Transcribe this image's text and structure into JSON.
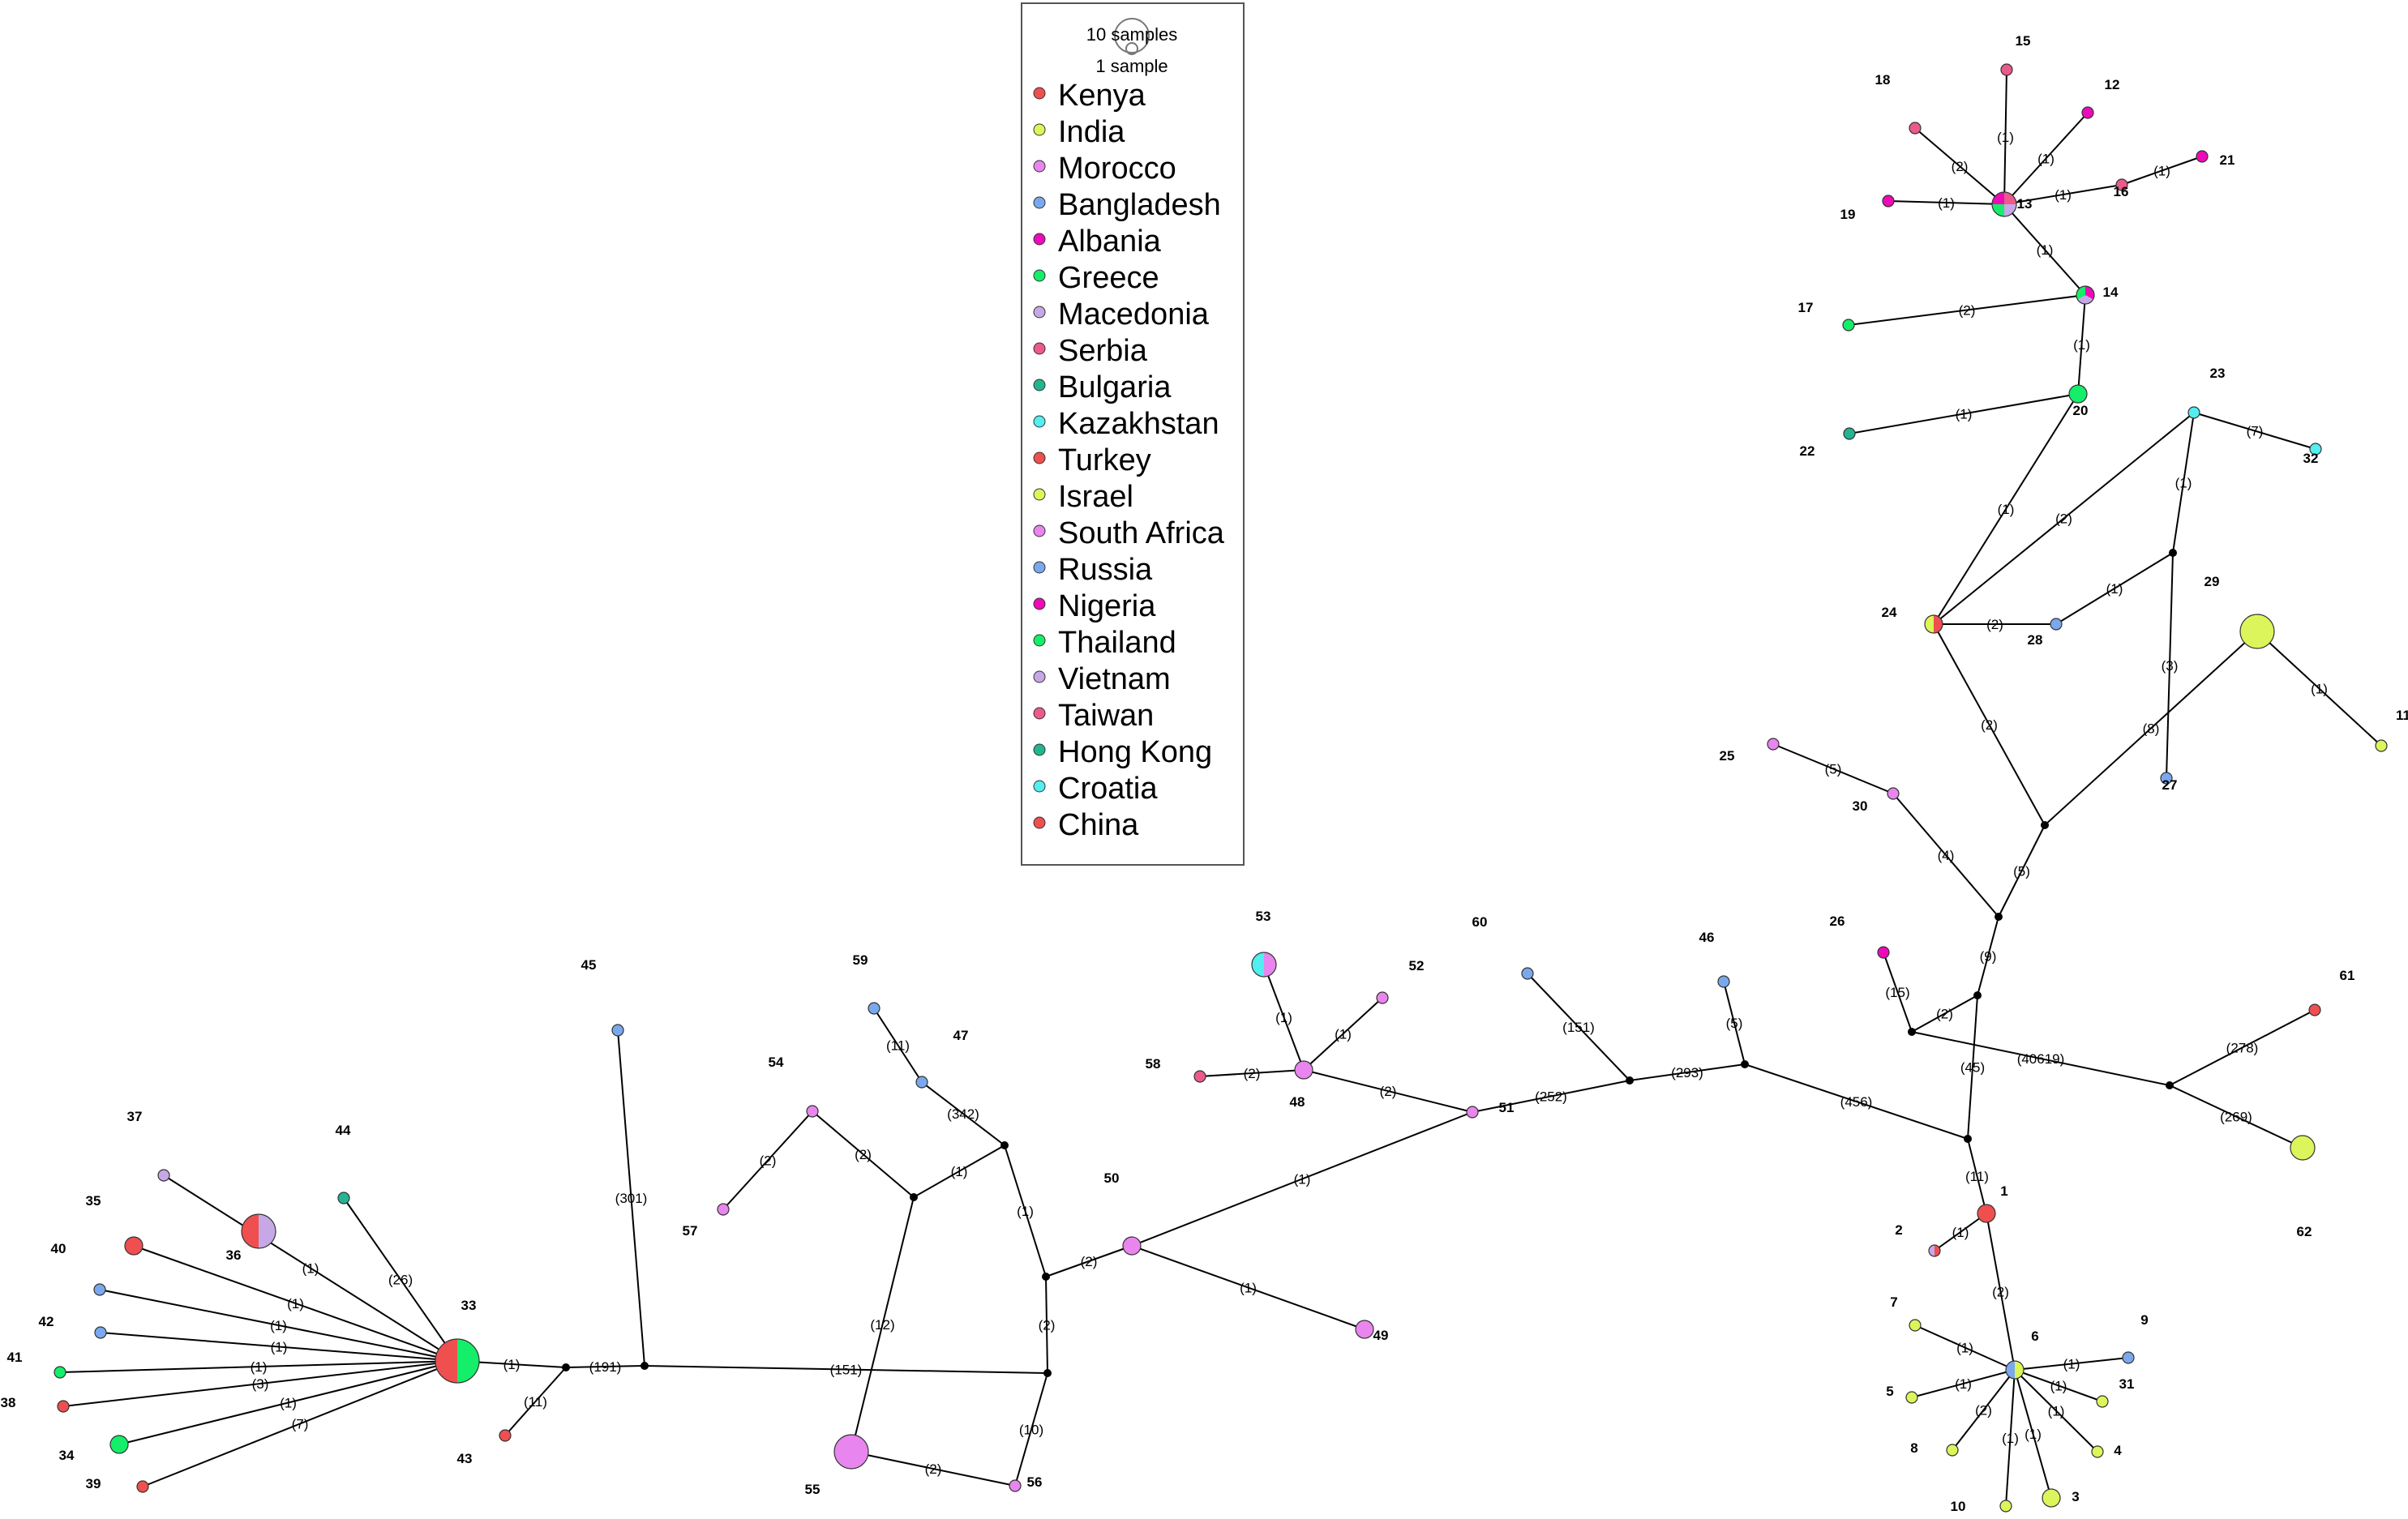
{
  "legend": {
    "size_labels": [
      "10 samples",
      "1 sample"
    ],
    "entries": [
      {
        "label": "Kenya",
        "color": "#ef4f4f"
      },
      {
        "label": "India",
        "color": "#dcf55a"
      },
      {
        "label": "Morocco",
        "color": "#e985ee"
      },
      {
        "label": "Bangladesh",
        "color": "#7aa8ec"
      },
      {
        "label": "Albania",
        "color": "#ee0ab9"
      },
      {
        "label": "Greece",
        "color": "#14ee69"
      },
      {
        "label": "Macedonia",
        "color": "#c6a8e6"
      },
      {
        "label": "Serbia",
        "color": "#ec5a8c"
      },
      {
        "label": "Bulgaria",
        "color": "#23b590"
      },
      {
        "label": "Kazakhstan",
        "color": "#52eef0"
      },
      {
        "label": "Turkey",
        "color": "#ef4f4f"
      },
      {
        "label": "Israel",
        "color": "#dcf55a"
      },
      {
        "label": "South Africa",
        "color": "#e985ee"
      },
      {
        "label": "Russia",
        "color": "#7aa8ec"
      },
      {
        "label": "Nigeria",
        "color": "#ee0ab9"
      },
      {
        "label": "Thailand",
        "color": "#14ee69"
      },
      {
        "label": "Vietnam",
        "color": "#c6a8e6"
      },
      {
        "label": "Taiwan",
        "color": "#ec5a8c"
      },
      {
        "label": "Hong Kong",
        "color": "#23b590"
      },
      {
        "label": "Croatia",
        "color": "#52eef0"
      },
      {
        "label": "China",
        "color": "#ef4f4f"
      }
    ]
  },
  "nodes": [
    {
      "id": "1",
      "label": "1",
      "colors": [
        "#ef4f4f"
      ],
      "size": 2
    },
    {
      "id": "2",
      "label": "2",
      "colors": [
        "#ef4f4f",
        "#c6a8e6"
      ],
      "size": 1
    },
    {
      "id": "3",
      "label": "3",
      "colors": [
        "#dcf55a"
      ],
      "size": 2
    },
    {
      "id": "4",
      "label": "4",
      "colors": [
        "#dcf55a"
      ],
      "size": 1
    },
    {
      "id": "5",
      "label": "5",
      "colors": [
        "#dcf55a"
      ],
      "size": 1
    },
    {
      "id": "6",
      "label": "6",
      "colors": [
        "#dcf55a",
        "#7aa8ec"
      ],
      "size": 2
    },
    {
      "id": "7",
      "label": "7",
      "colors": [
        "#dcf55a"
      ],
      "size": 1
    },
    {
      "id": "8",
      "label": "8",
      "colors": [
        "#dcf55a"
      ],
      "size": 1
    },
    {
      "id": "9",
      "label": "9",
      "colors": [
        "#7aa8ec"
      ],
      "size": 1
    },
    {
      "id": "10",
      "label": "10",
      "colors": [
        "#dcf55a"
      ],
      "size": 1
    },
    {
      "id": "11",
      "label": "11",
      "colors": [
        "#dcf55a"
      ],
      "size": 1
    },
    {
      "id": "12",
      "label": "12",
      "colors": [
        "#ee0ab9"
      ],
      "size": 1
    },
    {
      "id": "13",
      "label": "13",
      "colors": [
        "#ec5a8c",
        "#c6a8e6",
        "#14ee69",
        "#ee0ab9"
      ],
      "size": 3
    },
    {
      "id": "14",
      "label": "14",
      "colors": [
        "#ee0ab9",
        "#c6a8e6",
        "#14ee69"
      ],
      "size": 2
    },
    {
      "id": "15",
      "label": "15",
      "colors": [
        "#ec5a8c"
      ],
      "size": 1
    },
    {
      "id": "16",
      "label": "16",
      "colors": [
        "#ec5a8c"
      ],
      "size": 1
    },
    {
      "id": "17",
      "label": "17",
      "colors": [
        "#14ee69"
      ],
      "size": 1
    },
    {
      "id": "18",
      "label": "18",
      "colors": [
        "#ec5a8c"
      ],
      "size": 1
    },
    {
      "id": "19",
      "label": "19",
      "colors": [
        "#ee0ab9"
      ],
      "size": 1
    },
    {
      "id": "20",
      "label": "20",
      "colors": [
        "#14ee69"
      ],
      "size": 2
    },
    {
      "id": "21",
      "label": "21",
      "colors": [
        "#ee0ab9"
      ],
      "size": 1
    },
    {
      "id": "22",
      "label": "22",
      "colors": [
        "#23b590"
      ],
      "size": 1
    },
    {
      "id": "23",
      "label": "23",
      "colors": [
        "#52eef0"
      ],
      "size": 1
    },
    {
      "id": "24",
      "label": "24",
      "colors": [
        "#ef4f4f",
        "#dcf55a"
      ],
      "size": 2
    },
    {
      "id": "25",
      "label": "25",
      "colors": [
        "#e985ee"
      ],
      "size": 1
    },
    {
      "id": "26",
      "label": "26",
      "colors": [
        "#ee0ab9"
      ],
      "size": 1
    },
    {
      "id": "27",
      "label": "27",
      "colors": [
        "#7aa8ec"
      ],
      "size": 1
    },
    {
      "id": "28",
      "label": "28",
      "colors": [
        "#7aa8ec"
      ],
      "size": 1
    },
    {
      "id": "29",
      "label": "29",
      "colors": [
        "#dcf55a"
      ],
      "size": 4
    },
    {
      "id": "30",
      "label": "30",
      "colors": [
        "#e985ee"
      ],
      "size": 1
    },
    {
      "id": "31",
      "label": "31",
      "colors": [
        "#dcf55a"
      ],
      "size": 1
    },
    {
      "id": "32",
      "label": "32",
      "colors": [
        "#52eef0"
      ],
      "size": 1
    },
    {
      "id": "33",
      "label": "33",
      "colors": [
        "#14ee69",
        "#ef4f4f"
      ],
      "size": 5
    },
    {
      "id": "34",
      "label": "34",
      "colors": [
        "#14ee69"
      ],
      "size": 2
    },
    {
      "id": "35",
      "label": "35",
      "colors": [
        "#ef4f4f"
      ],
      "size": 2
    },
    {
      "id": "36",
      "label": "36",
      "colors": [
        "#c6a8e6",
        "#ef4f4f"
      ],
      "size": 4
    },
    {
      "id": "37",
      "label": "37",
      "colors": [
        "#c6a8e6"
      ],
      "size": 1
    },
    {
      "id": "38",
      "label": "38",
      "colors": [
        "#ef4f4f"
      ],
      "size": 1
    },
    {
      "id": "39",
      "label": "39",
      "colors": [
        "#ef4f4f"
      ],
      "size": 1
    },
    {
      "id": "40",
      "label": "40",
      "colors": [
        "#7aa8ec"
      ],
      "size": 1
    },
    {
      "id": "41",
      "label": "41",
      "colors": [
        "#14ee69"
      ],
      "size": 1
    },
    {
      "id": "42",
      "label": "42",
      "colors": [
        "#7aa8ec"
      ],
      "size": 1
    },
    {
      "id": "43",
      "label": "43",
      "colors": [
        "#ef4f4f"
      ],
      "size": 1
    },
    {
      "id": "44",
      "label": "44",
      "colors": [
        "#23b590"
      ],
      "size": 1
    },
    {
      "id": "45",
      "label": "45",
      "colors": [
        "#7aa8ec"
      ],
      "size": 1
    },
    {
      "id": "46",
      "label": "46",
      "colors": [
        "#7aa8ec"
      ],
      "size": 1
    },
    {
      "id": "47",
      "label": "47",
      "colors": [
        "#7aa8ec"
      ],
      "size": 1
    },
    {
      "id": "48",
      "label": "48",
      "colors": [
        "#e985ee"
      ],
      "size": 2
    },
    {
      "id": "49",
      "label": "49",
      "colors": [
        "#e985ee"
      ],
      "size": 2
    },
    {
      "id": "50",
      "label": "50",
      "colors": [
        "#e985ee"
      ],
      "size": 2
    },
    {
      "id": "51",
      "label": "51",
      "colors": [
        "#e985ee"
      ],
      "size": 1
    },
    {
      "id": "52",
      "label": "52",
      "colors": [
        "#e985ee"
      ],
      "size": 1
    },
    {
      "id": "53",
      "label": "53",
      "colors": [
        "#e985ee",
        "#52eef0"
      ],
      "size": 3
    },
    {
      "id": "54",
      "label": "54",
      "colors": [
        "#e985ee"
      ],
      "size": 1
    },
    {
      "id": "55",
      "label": "55",
      "colors": [
        "#e985ee"
      ],
      "size": 4
    },
    {
      "id": "56",
      "label": "56",
      "colors": [
        "#e985ee"
      ],
      "size": 1
    },
    {
      "id": "57",
      "label": "57",
      "colors": [
        "#e985ee"
      ],
      "size": 1
    },
    {
      "id": "58",
      "label": "58",
      "colors": [
        "#ec5a8c"
      ],
      "size": 1
    },
    {
      "id": "59",
      "label": "59",
      "colors": [
        "#7aa8ec"
      ],
      "size": 1
    },
    {
      "id": "60",
      "label": "60",
      "colors": [
        "#7aa8ec"
      ],
      "size": 1
    },
    {
      "id": "61",
      "label": "61",
      "colors": [
        "#ef4f4f"
      ],
      "size": 1
    },
    {
      "id": "62",
      "label": "62",
      "colors": [
        "#dcf55a"
      ],
      "size": 3
    }
  ],
  "edges": [
    {
      "from": "33",
      "to": "37",
      "label": "(1)"
    },
    {
      "from": "33",
      "to": "44",
      "label": "(26)"
    },
    {
      "from": "33",
      "to": "35",
      "label": "(1)"
    },
    {
      "from": "33",
      "to": "40",
      "label": "(1)"
    },
    {
      "from": "33",
      "to": "42",
      "label": "(1)"
    },
    {
      "from": "33",
      "to": "41",
      "label": "(1)"
    },
    {
      "from": "33",
      "to": "38",
      "label": "(3)"
    },
    {
      "from": "33",
      "to": "34",
      "label": "(1)"
    },
    {
      "from": "33",
      "to": "39",
      "label": "(7)"
    },
    {
      "from": "33",
      "to": "m1",
      "label": "(1)"
    },
    {
      "from": "m1",
      "to": "43",
      "label": "(11)"
    },
    {
      "from": "m1",
      "to": "m2",
      "label": "(191)"
    },
    {
      "from": "m2",
      "to": "45",
      "label": "(301)"
    },
    {
      "from": "m2",
      "to": "m3",
      "label": "(151)"
    },
    {
      "from": "m3",
      "to": "56",
      "label": "(10)"
    },
    {
      "from": "m3",
      "to": "m4",
      "label": "(2)"
    },
    {
      "from": "55",
      "to": "56",
      "label": "(2)"
    },
    {
      "from": "55",
      "to": "m5",
      "label": "(12)"
    },
    {
      "from": "m5",
      "to": "54",
      "label": "(2)"
    },
    {
      "from": "m5",
      "to": "m6",
      "label": "(1)"
    },
    {
      "from": "54",
      "to": "57",
      "label": "(2)"
    },
    {
      "from": "m6",
      "to": "47",
      "label": "(342)"
    },
    {
      "from": "m6",
      "to": "m4",
      "label": "(1)"
    },
    {
      "from": "47",
      "to": "59",
      "label": "(11)"
    },
    {
      "from": "m4",
      "to": "50",
      "label": "(2)"
    },
    {
      "from": "50",
      "to": "49",
      "label": "(1)"
    },
    {
      "from": "50",
      "to": "51",
      "label": "(1)"
    },
    {
      "from": "51",
      "to": "48",
      "label": "(2)"
    },
    {
      "from": "48",
      "to": "58",
      "label": "(2)"
    },
    {
      "from": "48",
      "to": "53",
      "label": "(1)"
    },
    {
      "from": "48",
      "to": "52",
      "label": "(1)"
    },
    {
      "from": "51",
      "to": "m7",
      "label": "(252)"
    },
    {
      "from": "m7",
      "to": "60",
      "label": "(151)"
    },
    {
      "from": "m7",
      "to": "m8",
      "label": "(293)"
    },
    {
      "from": "m8",
      "to": "46",
      "label": "(5)"
    },
    {
      "from": "m8",
      "to": "m9",
      "label": "(456)"
    },
    {
      "from": "m9",
      "to": "1",
      "label": "(11)"
    },
    {
      "from": "1",
      "to": "2",
      "label": "(1)"
    },
    {
      "from": "1",
      "to": "6",
      "label": "(2)"
    },
    {
      "from": "6",
      "to": "7",
      "label": "(1)"
    },
    {
      "from": "6",
      "to": "5",
      "label": "(1)"
    },
    {
      "from": "6",
      "to": "8",
      "label": "(2)"
    },
    {
      "from": "6",
      "to": "10",
      "label": "(1)"
    },
    {
      "from": "6",
      "to": "3",
      "label": "(1)"
    },
    {
      "from": "6",
      "to": "4",
      "label": "(1)"
    },
    {
      "from": "6",
      "to": "31",
      "label": "(1)"
    },
    {
      "from": "6",
      "to": "9",
      "label": "(1)"
    },
    {
      "from": "m9",
      "to": "m10",
      "label": "(45)"
    },
    {
      "from": "m10",
      "to": "m11",
      "label": "(2)"
    },
    {
      "from": "m11",
      "to": "26",
      "label": "(15)"
    },
    {
      "from": "m11",
      "to": "m12",
      "label": "(40619)"
    },
    {
      "from": "m12",
      "to": "61",
      "label": "(278)"
    },
    {
      "from": "m12",
      "to": "62",
      "label": "(269)"
    },
    {
      "from": "m10",
      "to": "m13",
      "label": "(9)"
    },
    {
      "from": "m13",
      "to": "30",
      "label": "(4)"
    },
    {
      "from": "30",
      "to": "25",
      "label": "(5)"
    },
    {
      "from": "m13",
      "to": "m14",
      "label": "(5)"
    },
    {
      "from": "m14",
      "to": "24",
      "label": "(2)"
    },
    {
      "from": "m14",
      "to": "29",
      "label": "(8)"
    },
    {
      "from": "29",
      "to": "11",
      "label": "(1)"
    },
    {
      "from": "24",
      "to": "28",
      "label": "(2)"
    },
    {
      "from": "28",
      "to": "m15",
      "label": "(1)"
    },
    {
      "from": "m15",
      "to": "27",
      "label": "(3)"
    },
    {
      "from": "m15",
      "to": "23",
      "label": "(1)"
    },
    {
      "from": "24",
      "to": "23",
      "label": "(2)"
    },
    {
      "from": "23",
      "to": "32",
      "label": "(7)"
    },
    {
      "from": "24",
      "to": "20",
      "label": "(1)"
    },
    {
      "from": "20",
      "to": "22",
      "label": "(1)"
    },
    {
      "from": "20",
      "to": "14",
      "label": "(1)"
    },
    {
      "from": "14",
      "to": "17",
      "label": "(2)"
    },
    {
      "from": "14",
      "to": "13",
      "label": "(1)"
    },
    {
      "from": "13",
      "to": "15",
      "label": "(1)"
    },
    {
      "from": "13",
      "to": "12",
      "label": "(1)"
    },
    {
      "from": "13",
      "to": "18",
      "label": "(2)"
    },
    {
      "from": "13",
      "to": "19",
      "label": "(1)"
    },
    {
      "from": "13",
      "to": "16",
      "label": "(1)"
    },
    {
      "from": "16",
      "to": "21",
      "label": "(1)"
    }
  ]
}
